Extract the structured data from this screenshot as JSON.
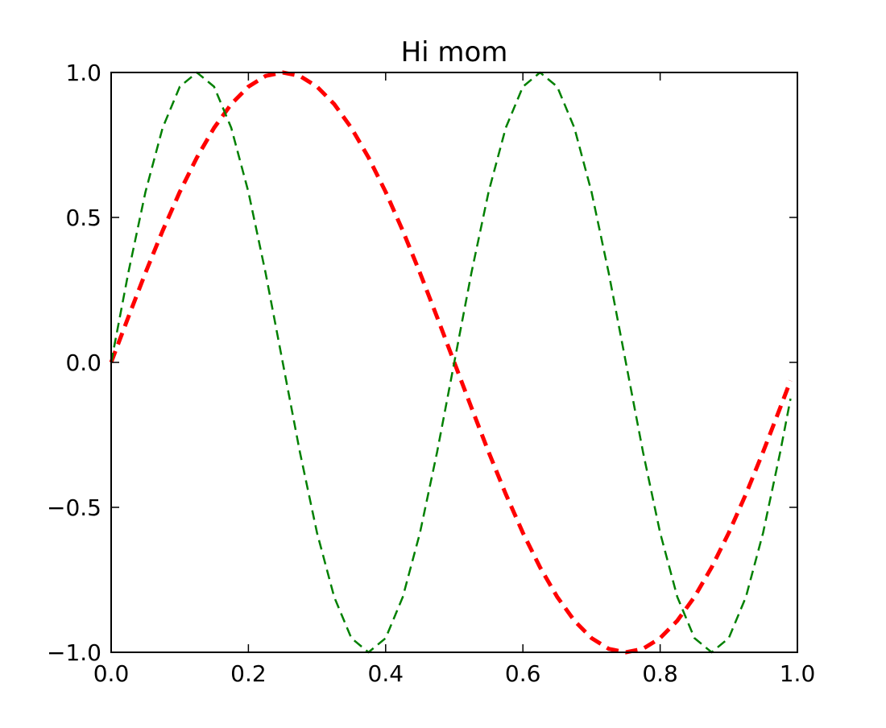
{
  "chart_data": {
    "type": "line",
    "title": "Hi mom",
    "xlabel": "",
    "ylabel": "",
    "xlim": [
      0.0,
      1.0
    ],
    "ylim": [
      -1.0,
      1.0
    ],
    "grid": false,
    "x_ticks": [
      0.0,
      0.2,
      0.4,
      0.6,
      0.8,
      1.0
    ],
    "x_tick_labels": [
      "0.0",
      "0.2",
      "0.4",
      "0.6",
      "0.8",
      "1.0"
    ],
    "y_ticks": [
      1.0,
      0.5,
      0.0,
      -0.5,
      -1.0
    ],
    "y_tick_labels": [
      "1.0",
      "0.5",
      "0.0",
      "−0.5",
      "−1.0"
    ],
    "x": [
      0.0,
      0.025,
      0.05,
      0.075,
      0.1,
      0.125,
      0.15,
      0.175,
      0.2,
      0.225,
      0.25,
      0.275,
      0.3,
      0.325,
      0.35,
      0.375,
      0.4,
      0.425,
      0.45,
      0.475,
      0.5,
      0.525,
      0.55,
      0.575,
      0.6,
      0.625,
      0.65,
      0.675,
      0.7,
      0.725,
      0.75,
      0.775,
      0.8,
      0.825,
      0.85,
      0.875,
      0.9,
      0.925,
      0.95,
      0.975,
      0.99
    ],
    "series": [
      {
        "color": "#ff0000",
        "style": "dashed",
        "width": "thick",
        "values": [
          0.0,
          0.156,
          0.309,
          0.454,
          0.588,
          0.707,
          0.809,
          0.891,
          0.951,
          0.988,
          1.0,
          0.988,
          0.951,
          0.891,
          0.809,
          0.707,
          0.588,
          0.454,
          0.309,
          0.156,
          0.0,
          -0.156,
          -0.309,
          -0.454,
          -0.588,
          -0.707,
          -0.809,
          -0.891,
          -0.951,
          -0.988,
          -1.0,
          -0.988,
          -0.951,
          -0.891,
          -0.809,
          -0.707,
          -0.588,
          -0.454,
          -0.309,
          -0.156,
          -0.063
        ]
      },
      {
        "color": "#008000",
        "style": "dashed",
        "width": "thin",
        "values": [
          0.0,
          0.309,
          0.588,
          0.809,
          0.951,
          1.0,
          0.951,
          0.809,
          0.588,
          0.309,
          0.0,
          -0.309,
          -0.588,
          -0.809,
          -0.951,
          -1.0,
          -0.951,
          -0.809,
          -0.588,
          -0.309,
          0.0,
          0.309,
          0.588,
          0.809,
          0.951,
          1.0,
          0.951,
          0.809,
          0.588,
          0.309,
          0.0,
          -0.309,
          -0.588,
          -0.809,
          -0.951,
          -1.0,
          -0.951,
          -0.809,
          -0.588,
          -0.309,
          -0.125
        ]
      }
    ]
  }
}
